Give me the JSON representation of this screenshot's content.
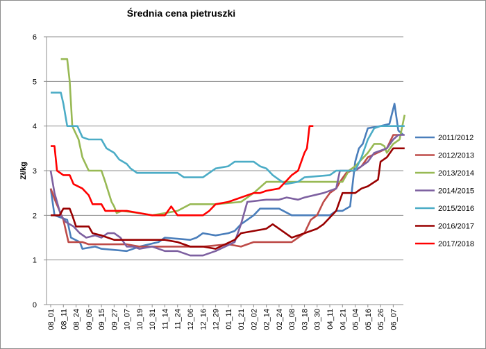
{
  "chart_data": {
    "type": "line",
    "title": "Średnia cena pietruszki",
    "xlabel": "",
    "ylabel": "Zł/kg",
    "ylim": [
      0,
      6
    ],
    "yticks": [
      "0",
      "1",
      "2",
      "3",
      "4",
      "5",
      "6"
    ],
    "grid": true,
    "legend_position": "right",
    "x_tick_labels": [
      "08_01",
      "08_11",
      "08_24",
      "09_05",
      "09_15",
      "09_27",
      "10_07",
      "10_19",
      "10_31",
      "11_14",
      "11_24",
      "12_06",
      "12_16",
      "12_29",
      "01_11",
      "01_21",
      "02_02",
      "02_14",
      "02_24",
      "03_08",
      "03_18",
      "03_30",
      "04_11",
      "04_21",
      "05_04",
      "05_16",
      "05_26",
      "06_07"
    ],
    "series": [
      {
        "name": "2011/2012",
        "color": "#4a7ebb",
        "points": [
          [
            0,
            2.6
          ],
          [
            0.3,
            2.0
          ],
          [
            1.3,
            1.9
          ],
          [
            1.6,
            1.5
          ],
          [
            2.3,
            1.4
          ],
          [
            2.5,
            1.25
          ],
          [
            3.5,
            1.3
          ],
          [
            4.0,
            1.25
          ],
          [
            6.0,
            1.2
          ],
          [
            7.0,
            1.3
          ],
          [
            8.5,
            1.4
          ],
          [
            9.0,
            1.5
          ],
          [
            11.0,
            1.45
          ],
          [
            11.5,
            1.5
          ],
          [
            12.0,
            1.6
          ],
          [
            13.0,
            1.55
          ],
          [
            14.0,
            1.6
          ],
          [
            14.5,
            1.65
          ],
          [
            15.0,
            1.8
          ],
          [
            16.0,
            2.0
          ],
          [
            16.5,
            2.15
          ],
          [
            18.0,
            2.15
          ],
          [
            19.0,
            2.0
          ],
          [
            21.0,
            2.0
          ],
          [
            22.0,
            2.0
          ],
          [
            22.5,
            2.1
          ],
          [
            23.0,
            2.1
          ],
          [
            23.6,
            2.2
          ],
          [
            23.8,
            2.7
          ],
          [
            24.0,
            3.2
          ],
          [
            24.3,
            3.5
          ],
          [
            24.6,
            3.6
          ],
          [
            25.0,
            3.95
          ],
          [
            26.0,
            4.0
          ],
          [
            26.7,
            4.05
          ],
          [
            27.1,
            4.5
          ],
          [
            27.4,
            3.9
          ],
          [
            27.8,
            3.8
          ]
        ]
      },
      {
        "name": "2012/2013",
        "color": "#be4b48",
        "points": [
          [
            0,
            2.6
          ],
          [
            0.4,
            2.3
          ],
          [
            1.0,
            1.9
          ],
          [
            1.4,
            1.4
          ],
          [
            2.5,
            1.4
          ],
          [
            3.0,
            1.35
          ],
          [
            5.0,
            1.35
          ],
          [
            6.0,
            1.35
          ],
          [
            7.0,
            1.3
          ],
          [
            9.0,
            1.3
          ],
          [
            12.0,
            1.3
          ],
          [
            14.0,
            1.35
          ],
          [
            15.0,
            1.3
          ],
          [
            16.0,
            1.4
          ],
          [
            19.0,
            1.4
          ],
          [
            20.0,
            1.6
          ],
          [
            20.5,
            1.9
          ],
          [
            21.0,
            2.0
          ],
          [
            21.5,
            2.3
          ],
          [
            22.0,
            2.5
          ],
          [
            22.5,
            2.6
          ],
          [
            22.8,
            2.75
          ],
          [
            23.3,
            2.95
          ],
          [
            23.7,
            3.0
          ],
          [
            24.0,
            3.0
          ],
          [
            24.5,
            3.1
          ],
          [
            25.0,
            3.3
          ],
          [
            26.5,
            3.5
          ],
          [
            27.0,
            3.8
          ],
          [
            27.5,
            3.8
          ]
        ]
      },
      {
        "name": "2013/2014",
        "color": "#98b954",
        "points": [
          [
            0.8,
            5.5
          ],
          [
            1.3,
            5.5
          ],
          [
            1.5,
            5.0
          ],
          [
            1.7,
            4.0
          ],
          [
            2.2,
            3.7
          ],
          [
            2.5,
            3.3
          ],
          [
            3.0,
            3.0
          ],
          [
            4.0,
            3.0
          ],
          [
            4.3,
            2.75
          ],
          [
            4.8,
            2.3
          ],
          [
            5.0,
            2.2
          ],
          [
            5.2,
            2.05
          ],
          [
            5.6,
            2.1
          ],
          [
            7.0,
            2.05
          ],
          [
            8.0,
            2.0
          ],
          [
            9.0,
            2.05
          ],
          [
            10.0,
            2.1
          ],
          [
            11.0,
            2.25
          ],
          [
            13.0,
            2.25
          ],
          [
            15.0,
            2.3
          ],
          [
            16.0,
            2.5
          ],
          [
            17.0,
            2.75
          ],
          [
            19.0,
            2.75
          ],
          [
            20.0,
            2.75
          ],
          [
            23.0,
            2.75
          ],
          [
            23.5,
            3.0
          ],
          [
            24.0,
            3.1
          ],
          [
            25.0,
            3.4
          ],
          [
            25.5,
            3.6
          ],
          [
            26.0,
            3.6
          ],
          [
            26.3,
            3.55
          ],
          [
            26.5,
            3.4
          ],
          [
            27.0,
            3.6
          ],
          [
            27.5,
            3.7
          ],
          [
            27.9,
            4.25
          ]
        ]
      },
      {
        "name": "2014/2015",
        "color": "#7d60a0",
        "points": [
          [
            0,
            3.0
          ],
          [
            0.3,
            2.5
          ],
          [
            0.8,
            2.0
          ],
          [
            1.2,
            1.85
          ],
          [
            1.8,
            1.75
          ],
          [
            2.3,
            1.6
          ],
          [
            2.8,
            1.5
          ],
          [
            3.5,
            1.55
          ],
          [
            4.0,
            1.5
          ],
          [
            4.5,
            1.6
          ],
          [
            5.0,
            1.6
          ],
          [
            5.5,
            1.5
          ],
          [
            6.0,
            1.3
          ],
          [
            6.5,
            1.3
          ],
          [
            7.0,
            1.25
          ],
          [
            8.0,
            1.3
          ],
          [
            9.0,
            1.2
          ],
          [
            10.0,
            1.2
          ],
          [
            11.0,
            1.1
          ],
          [
            12.0,
            1.1
          ],
          [
            13.0,
            1.2
          ],
          [
            14.5,
            1.4
          ],
          [
            15.0,
            1.8
          ],
          [
            15.5,
            2.3
          ],
          [
            17.0,
            2.35
          ],
          [
            18.0,
            2.35
          ],
          [
            18.6,
            2.4
          ],
          [
            19.5,
            2.35
          ],
          [
            20.0,
            2.4
          ],
          [
            21.5,
            2.5
          ],
          [
            22.5,
            2.6
          ],
          [
            22.8,
            3.0
          ],
          [
            24.0,
            3.0
          ],
          [
            25.0,
            3.2
          ],
          [
            25.5,
            3.4
          ],
          [
            26.5,
            3.5
          ],
          [
            27.0,
            3.7
          ],
          [
            27.4,
            3.8
          ],
          [
            27.9,
            3.8
          ]
        ]
      },
      {
        "name": "2015/2016",
        "color": "#4bacc6",
        "points": [
          [
            0,
            4.75
          ],
          [
            0.8,
            4.75
          ],
          [
            1.0,
            4.5
          ],
          [
            1.3,
            4.0
          ],
          [
            2.1,
            4.0
          ],
          [
            2.5,
            3.75
          ],
          [
            3.0,
            3.7
          ],
          [
            4.0,
            3.7
          ],
          [
            4.4,
            3.5
          ],
          [
            5.0,
            3.4
          ],
          [
            5.4,
            3.25
          ],
          [
            6.0,
            3.15
          ],
          [
            6.3,
            3.05
          ],
          [
            6.8,
            2.95
          ],
          [
            8.0,
            2.95
          ],
          [
            9.0,
            2.95
          ],
          [
            10.0,
            2.95
          ],
          [
            10.5,
            2.85
          ],
          [
            12.0,
            2.85
          ],
          [
            12.5,
            2.95
          ],
          [
            13.0,
            3.05
          ],
          [
            14.0,
            3.1
          ],
          [
            14.5,
            3.2
          ],
          [
            16.0,
            3.2
          ],
          [
            16.5,
            3.1
          ],
          [
            17.0,
            3.05
          ],
          [
            17.5,
            2.9
          ],
          [
            18.0,
            2.8
          ],
          [
            18.5,
            2.7
          ],
          [
            19.5,
            2.75
          ],
          [
            20.0,
            2.85
          ],
          [
            22.0,
            2.9
          ],
          [
            22.5,
            3.0
          ],
          [
            24.0,
            3.0
          ],
          [
            24.5,
            3.3
          ],
          [
            25.0,
            3.7
          ],
          [
            25.5,
            3.95
          ],
          [
            26.0,
            4.0
          ],
          [
            26.5,
            4.0
          ],
          [
            27.0,
            4.0
          ],
          [
            27.6,
            4.0
          ],
          [
            27.9,
            4.0
          ]
        ]
      },
      {
        "name": "2016/2017",
        "color": "#990000",
        "points": [
          [
            0,
            2.0
          ],
          [
            0.7,
            2.0
          ],
          [
            1.0,
            2.15
          ],
          [
            1.5,
            2.15
          ],
          [
            1.7,
            2.0
          ],
          [
            2.0,
            1.75
          ],
          [
            3.0,
            1.75
          ],
          [
            3.3,
            1.6
          ],
          [
            4.0,
            1.55
          ],
          [
            4.5,
            1.5
          ],
          [
            5.0,
            1.45
          ],
          [
            6.0,
            1.45
          ],
          [
            8.0,
            1.45
          ],
          [
            9.0,
            1.45
          ],
          [
            10.0,
            1.4
          ],
          [
            11.0,
            1.3
          ],
          [
            12.0,
            1.3
          ],
          [
            13.0,
            1.25
          ],
          [
            14.5,
            1.45
          ],
          [
            15.0,
            1.6
          ],
          [
            16.0,
            1.65
          ],
          [
            17.0,
            1.7
          ],
          [
            17.5,
            1.8
          ],
          [
            18.5,
            1.6
          ],
          [
            19.0,
            1.5
          ],
          [
            20.0,
            1.6
          ],
          [
            21.0,
            1.7
          ],
          [
            21.5,
            1.8
          ],
          [
            22.0,
            1.95
          ],
          [
            22.5,
            2.1
          ],
          [
            23.0,
            2.5
          ],
          [
            24.0,
            2.5
          ],
          [
            24.5,
            2.6
          ],
          [
            25.0,
            2.65
          ],
          [
            25.8,
            2.8
          ],
          [
            26.0,
            3.2
          ],
          [
            26.5,
            3.3
          ],
          [
            27.0,
            3.5
          ],
          [
            27.9,
            3.5
          ]
        ]
      },
      {
        "name": "2017/2018",
        "color": "#ff0000",
        "points": [
          [
            0,
            3.55
          ],
          [
            0.3,
            3.55
          ],
          [
            0.5,
            3.0
          ],
          [
            1.0,
            2.9
          ],
          [
            1.5,
            2.9
          ],
          [
            1.8,
            2.7
          ],
          [
            2.5,
            2.6
          ],
          [
            3.0,
            2.45
          ],
          [
            3.3,
            2.25
          ],
          [
            4.0,
            2.25
          ],
          [
            4.3,
            2.1
          ],
          [
            5.0,
            2.1
          ],
          [
            6.0,
            2.1
          ],
          [
            7.0,
            2.05
          ],
          [
            8.0,
            2.0
          ],
          [
            9.0,
            2.0
          ],
          [
            9.5,
            2.2
          ],
          [
            10.0,
            2.0
          ],
          [
            11.0,
            2.0
          ],
          [
            12.0,
            2.0
          ],
          [
            12.5,
            2.1
          ],
          [
            13.0,
            2.25
          ],
          [
            14.0,
            2.3
          ],
          [
            15.0,
            2.4
          ],
          [
            16.0,
            2.5
          ],
          [
            16.5,
            2.5
          ],
          [
            17.0,
            2.55
          ],
          [
            18.0,
            2.6
          ],
          [
            18.5,
            2.75
          ],
          [
            19.0,
            2.9
          ],
          [
            19.5,
            3.0
          ],
          [
            20.0,
            3.4
          ],
          [
            20.2,
            3.5
          ],
          [
            20.4,
            4.0
          ],
          [
            20.7,
            4.0
          ]
        ]
      }
    ]
  }
}
